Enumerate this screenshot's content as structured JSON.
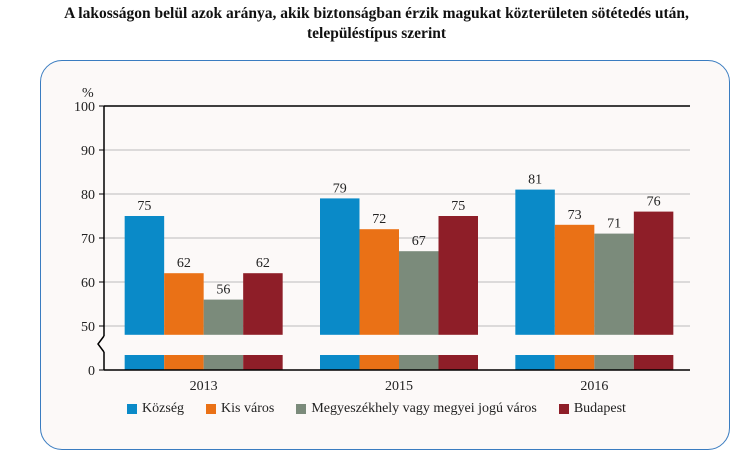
{
  "title_line1": "A lakosságon belül azok aránya, akik biztonságban  érzik magukat közterületen sötétedés után,",
  "title_line2": "településtípus szerint",
  "chart_data": {
    "type": "bar",
    "ylabel": "%",
    "categories": [
      "2013",
      "2015",
      "2016"
    ],
    "ylim": [
      0,
      100
    ],
    "axis_break": [
      0,
      48
    ],
    "yticks": [
      0,
      50,
      60,
      70,
      80,
      90,
      100
    ],
    "grid": true,
    "legend_position": "bottom",
    "series": [
      {
        "name": "Község",
        "color": "#0a8ac8",
        "values": [
          75,
          79,
          81
        ]
      },
      {
        "name": "Kis város",
        "color": "#ea7116",
        "values": [
          62,
          72,
          73
        ]
      },
      {
        "name": "Megyeszékhely vagy megyei jogú város",
        "color": "#7b8b7b",
        "values": [
          56,
          67,
          71
        ]
      },
      {
        "name": "Budapest",
        "color": "#8e1e28",
        "values": [
          62,
          75,
          76
        ]
      }
    ]
  }
}
